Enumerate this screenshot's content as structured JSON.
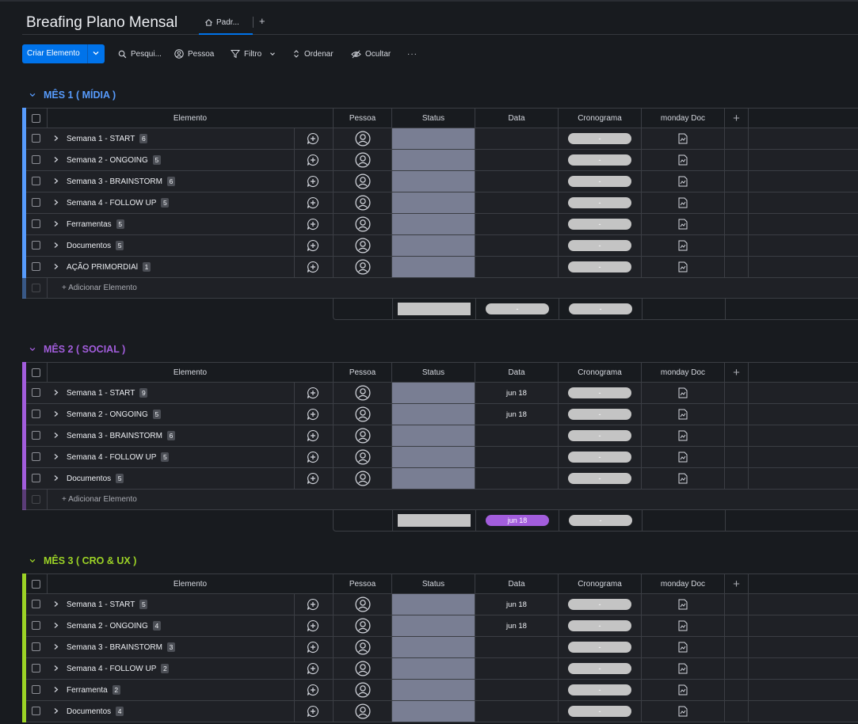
{
  "header": {
    "board_title": "Breafing Plano Mensal",
    "view_tab": "Padr...",
    "add_view": "+"
  },
  "toolbar": {
    "new_item": "Criar Elemento",
    "search": "Pesqui...",
    "person": "Pessoa",
    "filter": "Filtro",
    "sort": "Ordenar",
    "hide": "Ocultar",
    "more": "···"
  },
  "columns": {
    "item": "Elemento",
    "person": "Pessoa",
    "status": "Status",
    "date": "Data",
    "timeline": "Cronograma",
    "doc": "monday Doc",
    "add": "+"
  },
  "add_item_label": "+ Adicionar Elemento",
  "pill_placeholder": "-",
  "groups": [
    {
      "title": "MÊS 1 ( MÍDIA )",
      "color": "#579bfc",
      "summary_date": "-",
      "summary_date_color": "#c4c4c4",
      "rows": [
        {
          "name": "Semana 1 - START",
          "count": "6",
          "date": ""
        },
        {
          "name": "Semana 2 - ONGOING",
          "count": "5",
          "date": ""
        },
        {
          "name": "Semana 3 - BRAINSTORM",
          "count": "6",
          "date": ""
        },
        {
          "name": "Semana 4 - FOLLOW UP",
          "count": "5",
          "date": ""
        },
        {
          "name": "Ferramentas",
          "count": "5",
          "date": ""
        },
        {
          "name": "Documentos",
          "count": "5",
          "date": ""
        },
        {
          "name": "AÇÃO PRIMORDIAl",
          "count": "1",
          "date": ""
        }
      ]
    },
    {
      "title": "MÊS 2 ( SOCIAL )",
      "color": "#a25ddc",
      "summary_date": "jun 18",
      "summary_date_color": "#a25ddc",
      "rows": [
        {
          "name": "Semana 1 - START",
          "count": "9",
          "date": "jun 18"
        },
        {
          "name": "Semana 2 - ONGOING",
          "count": "5",
          "date": "jun 18"
        },
        {
          "name": "Semana 3 - BRAINSTORM",
          "count": "6",
          "date": ""
        },
        {
          "name": "Semana 4 - FOLLOW UP",
          "count": "5",
          "date": ""
        },
        {
          "name": "Documentos",
          "count": "5",
          "date": ""
        }
      ]
    },
    {
      "title": "MÊS 3 ( CRO & UX )",
      "color": "#9cd326",
      "summary_date": "",
      "summary_date_color": "#c4c4c4",
      "rows": [
        {
          "name": "Semana 1 - START",
          "count": "5",
          "date": "jun 18"
        },
        {
          "name": "Semana 2 - ONGOING",
          "count": "4",
          "date": "jun 18"
        },
        {
          "name": "Semana 3 - BRAINSTORM",
          "count": "3",
          "date": ""
        },
        {
          "name": "Semana 4 - FOLLOW UP",
          "count": "2",
          "date": ""
        },
        {
          "name": "Ferramenta",
          "count": "2",
          "date": ""
        },
        {
          "name": "Documentos",
          "count": "4",
          "date": ""
        }
      ]
    }
  ]
}
